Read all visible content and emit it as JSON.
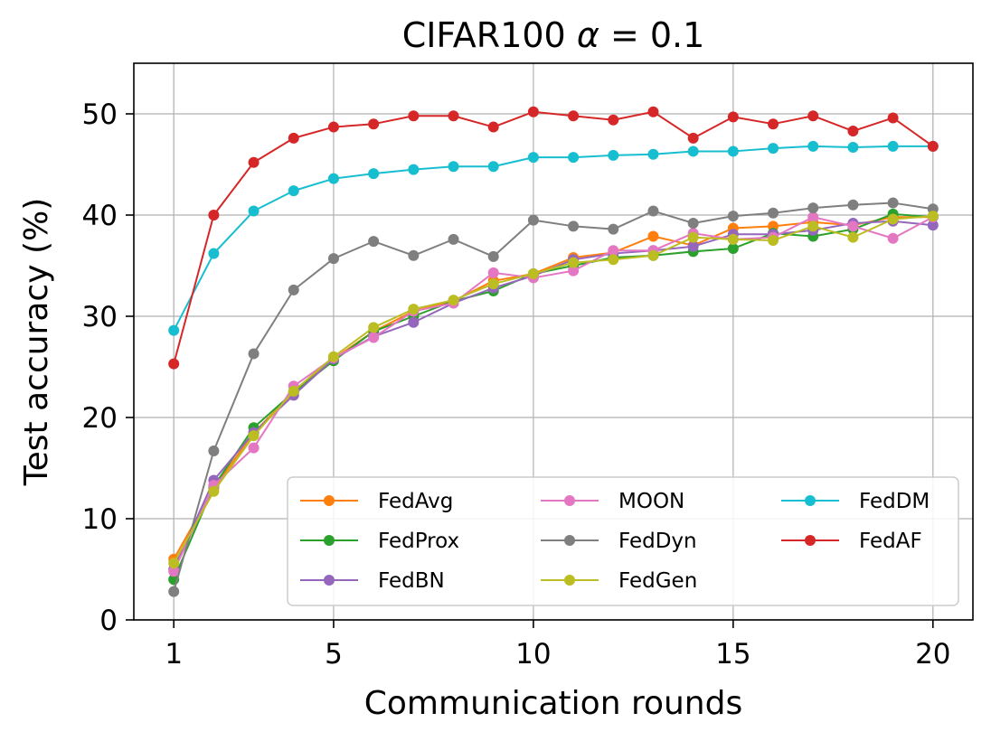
{
  "chart_data": {
    "type": "line",
    "title_text": "CIFAR100 ",
    "title_alpha": "α",
    "title_value": " = 0.1",
    "xlabel": "Communication rounds",
    "ylabel": "Test accuracy (%)",
    "xlim": [
      0.0,
      21.0
    ],
    "ylim": [
      0,
      55
    ],
    "xticks": [
      1,
      5,
      10,
      15,
      20
    ],
    "yticks": [
      0,
      10,
      20,
      30,
      40,
      50
    ],
    "grid": true,
    "legend_position": "lower-right",
    "legend_columns": 3,
    "x": [
      1,
      2,
      3,
      4,
      5,
      6,
      7,
      8,
      9,
      10,
      11,
      12,
      13,
      14,
      15,
      16,
      17,
      18,
      19,
      20
    ],
    "series": [
      {
        "name": "FedAvg",
        "color": "#ff7f0e",
        "values": [
          6.0,
          13.0,
          18.5,
          22.5,
          25.8,
          28.5,
          30.5,
          31.5,
          33.5,
          34.2,
          35.8,
          36.3,
          37.9,
          37.0,
          38.7,
          38.9,
          39.3,
          39.0,
          39.8,
          39.8
        ]
      },
      {
        "name": "FedProx",
        "color": "#2ca02c",
        "values": [
          4.0,
          13.2,
          19.0,
          22.5,
          25.6,
          28.5,
          30.0,
          31.5,
          32.5,
          34.2,
          35.0,
          35.8,
          36.0,
          36.4,
          36.7,
          38.2,
          37.9,
          38.6,
          40.1,
          39.8
        ]
      },
      {
        "name": "FedBN",
        "color": "#9467bd",
        "values": [
          5.0,
          13.8,
          18.5,
          22.2,
          25.8,
          28.0,
          29.4,
          31.3,
          32.8,
          34.0,
          35.6,
          36.2,
          36.5,
          36.9,
          38.1,
          38.1,
          38.5,
          39.2,
          39.4,
          39.0
        ]
      },
      {
        "name": "MOON",
        "color": "#e377c2",
        "values": [
          4.8,
          13.3,
          17.0,
          23.1,
          25.9,
          27.9,
          30.5,
          31.3,
          34.3,
          33.8,
          34.5,
          36.5,
          36.5,
          38.2,
          37.6,
          37.8,
          39.8,
          38.9,
          37.7,
          39.8
        ]
      },
      {
        "name": "FedDyn",
        "color": "#7f7f7f",
        "values": [
          2.8,
          16.7,
          26.3,
          32.6,
          35.7,
          37.4,
          36.0,
          37.6,
          35.9,
          39.5,
          38.9,
          38.6,
          40.4,
          39.2,
          39.9,
          40.2,
          40.7,
          41.0,
          41.2,
          40.6
        ]
      },
      {
        "name": "FedGen",
        "color": "#bcbd22",
        "values": [
          5.6,
          12.7,
          18.2,
          22.6,
          26.0,
          28.9,
          30.7,
          31.6,
          33.2,
          34.2,
          35.3,
          35.6,
          36.0,
          37.8,
          37.6,
          37.5,
          38.9,
          37.8,
          39.6,
          39.9
        ]
      },
      {
        "name": "FedDM",
        "color": "#17becf",
        "values": [
          28.6,
          36.2,
          40.4,
          42.4,
          43.6,
          44.1,
          44.5,
          44.8,
          44.8,
          45.7,
          45.7,
          45.9,
          46.0,
          46.3,
          46.3,
          46.6,
          46.8,
          46.7,
          46.8,
          46.8
        ]
      },
      {
        "name": "FedAF",
        "color": "#d62728",
        "values": [
          25.3,
          40.0,
          45.2,
          47.6,
          48.7,
          49.0,
          49.8,
          49.8,
          48.7,
          50.2,
          49.8,
          49.4,
          50.2,
          47.6,
          49.7,
          49.0,
          49.8,
          48.3,
          49.6,
          46.8
        ]
      }
    ]
  }
}
